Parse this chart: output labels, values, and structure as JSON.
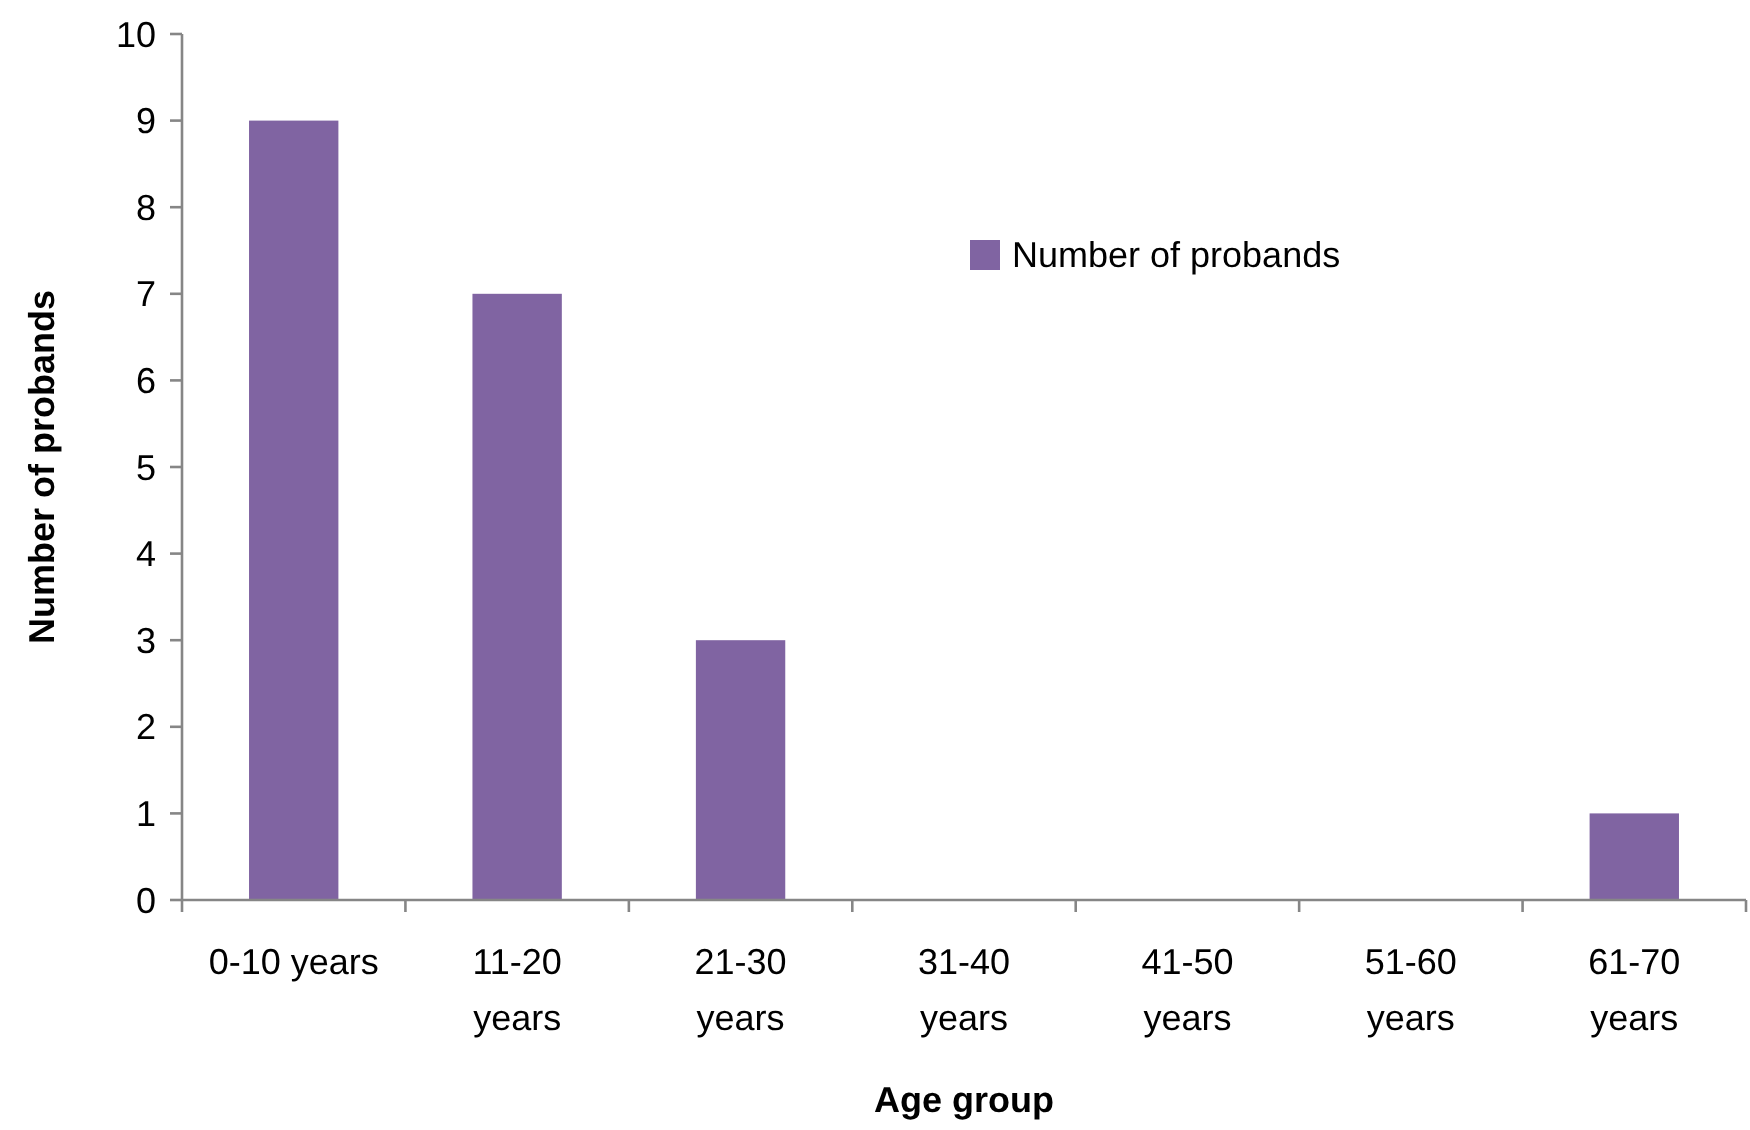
{
  "chart_data": {
    "type": "bar",
    "xlabel": "Age group",
    "ylabel": "Number of probands",
    "categories": [
      "0-10 years",
      "11-20 years",
      "21-30 years",
      "31-40 years",
      "41-50 years",
      "51-60 years",
      "61-70 years"
    ],
    "series": [
      {
        "name": "Number of probands",
        "color": "#8064a2",
        "values": [
          9,
          7,
          3,
          0,
          0,
          0,
          1
        ]
      }
    ],
    "ylim": [
      0,
      10
    ],
    "yticks": [
      0,
      1,
      2,
      3,
      4,
      5,
      6,
      7,
      8,
      9,
      10
    ],
    "grid": false,
    "legend": "top right"
  }
}
